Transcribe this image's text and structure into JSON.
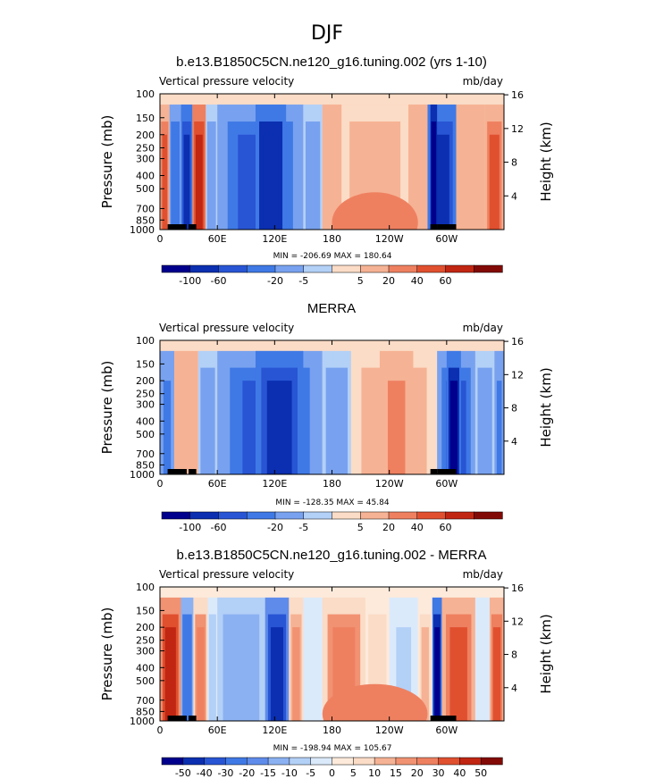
{
  "figure": {
    "season_title": "DJF"
  },
  "colors": {
    "palette12": [
      "#00008c",
      "#0b2fb0",
      "#2855d4",
      "#3f79e6",
      "#78a2ef",
      "#b3d0f7",
      "#fbdcc6",
      "#f6b294",
      "#ee8060",
      "#e0502f",
      "#c12612",
      "#820a06"
    ],
    "palette16": [
      "#00008c",
      "#0b2fb0",
      "#2855d4",
      "#3f79e6",
      "#5f8ceb",
      "#8bb1f2",
      "#b3d0f7",
      "#dbeafb",
      "#fdeadb",
      "#fbdcc6",
      "#f6b294",
      "#f19272",
      "#ee8060",
      "#e0502f",
      "#c12612",
      "#820a06"
    ],
    "topo": "#000000"
  },
  "chart_data": [
    {
      "type": "heatmap",
      "title": "b.e13.B1850C5CN.ne120_g16.tuning.002 (yrs 1-10)",
      "left_string": "Vertical pressure velocity",
      "right_string": "mb/day",
      "ylabel": "Pressure (mb)",
      "y2label": "Height (km)",
      "stats": "MIN = -206.69   MAX = 180.64",
      "palette": "palette12",
      "x_ticks": [
        "0",
        "60E",
        "120E",
        "180",
        "120W",
        "60W"
      ],
      "x_values_lon": [
        0,
        60,
        120,
        180,
        240,
        300
      ],
      "y_ticks": [
        "100",
        "150",
        "200",
        "250",
        "300",
        "400",
        "500",
        "700",
        "850",
        "1000"
      ],
      "y_values_mb": [
        100,
        150,
        200,
        250,
        300,
        400,
        500,
        700,
        850,
        1000
      ],
      "y2_ticks": [
        "4",
        "8",
        "12",
        "16"
      ],
      "y2_values_km": [
        4,
        8,
        12,
        16
      ],
      "xlim": [
        0,
        360
      ],
      "ylim_mb": [
        1000,
        100
      ],
      "colorbar_labels": [
        "-100",
        "-60",
        "-20",
        "-5",
        "5",
        "20",
        "40",
        "60"
      ],
      "fields": {
        "base": 0,
        "columns": [
          {
            "lon": [
              0,
              10
            ],
            "v": 40
          },
          {
            "lon": [
              10,
              22
            ],
            "v": -30
          },
          {
            "lon": [
              22,
              34
            ],
            "v": -70
          },
          {
            "lon": [
              34,
              48
            ],
            "v": 60
          },
          {
            "lon": [
              48,
              60
            ],
            "v": -10
          },
          {
            "lon": [
              60,
              150
            ],
            "v": -55
          },
          {
            "lon": [
              100,
              132
            ],
            "v": -95
          },
          {
            "lon": [
              150,
              170
            ],
            "v": -8
          },
          {
            "lon": [
              170,
              280
            ],
            "v": 22
          },
          {
            "lon": [
              190,
              260
            ],
            "v": 12
          },
          {
            "lon": [
              280,
              310
            ],
            "v": -70
          },
          {
            "lon": [
              283,
              290
            ],
            "v": -190
          },
          {
            "lon": [
              310,
              340
            ],
            "v": 18
          },
          {
            "lon": [
              340,
              360
            ],
            "v": 45
          }
        ],
        "low_blobs": [
          {
            "lon": [
              180,
              270
            ],
            "v": 38
          }
        ]
      }
    },
    {
      "type": "heatmap",
      "title": "MERRA",
      "left_string": "Vertical pressure velocity",
      "right_string": "mb/day",
      "ylabel": "Pressure (mb)",
      "y2label": "Height (km)",
      "stats": "MIN = -128.35   MAX =  45.84",
      "palette": "palette12",
      "x_ticks": [
        "0",
        "60E",
        "120E",
        "180",
        "120W",
        "60W"
      ],
      "x_values_lon": [
        0,
        60,
        120,
        180,
        240,
        300
      ],
      "y_ticks": [
        "100",
        "150",
        "200",
        "250",
        "300",
        "400",
        "500",
        "700",
        "850",
        "1000"
      ],
      "y_values_mb": [
        100,
        150,
        200,
        250,
        300,
        400,
        500,
        700,
        850,
        1000
      ],
      "y2_ticks": [
        "4",
        "8",
        "12",
        "16"
      ],
      "y2_values_km": [
        4,
        8,
        12,
        16
      ],
      "xlim": [
        0,
        360
      ],
      "ylim_mb": [
        1000,
        100
      ],
      "colorbar_labels": [
        "-100",
        "-60",
        "-20",
        "-5",
        "5",
        "20",
        "40",
        "60"
      ],
      "fields": {
        "base": 0,
        "columns": [
          {
            "lon": [
              0,
              15
            ],
            "v": -25
          },
          {
            "lon": [
              15,
              40
            ],
            "v": 15
          },
          {
            "lon": [
              40,
              60
            ],
            "v": -8
          },
          {
            "lon": [
              60,
              170
            ],
            "v": -45
          },
          {
            "lon": [
              100,
              150
            ],
            "v": -70
          },
          {
            "lon": [
              170,
              200
            ],
            "v": -8
          },
          {
            "lon": [
              200,
              290
            ],
            "v": 10
          },
          {
            "lon": [
              230,
              265
            ],
            "v": 22
          },
          {
            "lon": [
              290,
              330
            ],
            "v": -55
          },
          {
            "lon": [
              300,
              315
            ],
            "v": -110
          },
          {
            "lon": [
              330,
              350
            ],
            "v": -10
          },
          {
            "lon": [
              350,
              360
            ],
            "v": -25
          }
        ],
        "low_blobs": []
      }
    },
    {
      "type": "heatmap",
      "title": "b.e13.B1850C5CN.ne120_g16.tuning.002 - MERRA",
      "left_string": "Vertical pressure velocity",
      "right_string": "mb/day",
      "ylabel": "Pressure (mb)",
      "y2label": "Height (km)",
      "stats": "MIN = -198.94   MAX = 105.67",
      "palette": "palette16",
      "x_ticks": [
        "0",
        "60E",
        "120E",
        "180",
        "120W",
        "60W"
      ],
      "x_values_lon": [
        0,
        60,
        120,
        180,
        240,
        300
      ],
      "y_ticks": [
        "100",
        "150",
        "200",
        "250",
        "300",
        "400",
        "500",
        "700",
        "850",
        "1000"
      ],
      "y_values_mb": [
        100,
        150,
        200,
        250,
        300,
        400,
        500,
        700,
        850,
        1000
      ],
      "y2_ticks": [
        "4",
        "8",
        "12",
        "16"
      ],
      "y2_values_km": [
        4,
        8,
        12,
        16
      ],
      "xlim": [
        0,
        360
      ],
      "ylim_mb": [
        1000,
        100
      ],
      "colorbar_labels": [
        "-50",
        "-40",
        "-30",
        "-20",
        "-15",
        "-10",
        "-5",
        "0",
        "5",
        "10",
        "15",
        "20",
        "30",
        "40",
        "50"
      ],
      "fields": {
        "base": 3,
        "columns": [
          {
            "lon": [
              0,
              22
            ],
            "v": 45
          },
          {
            "lon": [
              22,
              35
            ],
            "v": -30
          },
          {
            "lon": [
              35,
              50
            ],
            "v": 25
          },
          {
            "lon": [
              50,
              60
            ],
            "v": -8
          },
          {
            "lon": [
              60,
              110
            ],
            "v": -15
          },
          {
            "lon": [
              110,
              135
            ],
            "v": -45
          },
          {
            "lon": [
              135,
              150
            ],
            "v": 15
          },
          {
            "lon": [
              150,
              170
            ],
            "v": -5
          },
          {
            "lon": [
              170,
              215
            ],
            "v": 22
          },
          {
            "lon": [
              215,
              240
            ],
            "v": 8
          },
          {
            "lon": [
              240,
              270
            ],
            "v": -6
          },
          {
            "lon": [
              270,
              285
            ],
            "v": 12
          },
          {
            "lon": [
              285,
              295
            ],
            "v": -60
          },
          {
            "lon": [
              295,
              330
            ],
            "v": 30
          },
          {
            "lon": [
              330,
              345
            ],
            "v": -5
          },
          {
            "lon": [
              345,
              360
            ],
            "v": 35
          }
        ],
        "low_blobs": [
          {
            "lon": [
              170,
              280
            ],
            "v": 28
          }
        ]
      }
    }
  ]
}
